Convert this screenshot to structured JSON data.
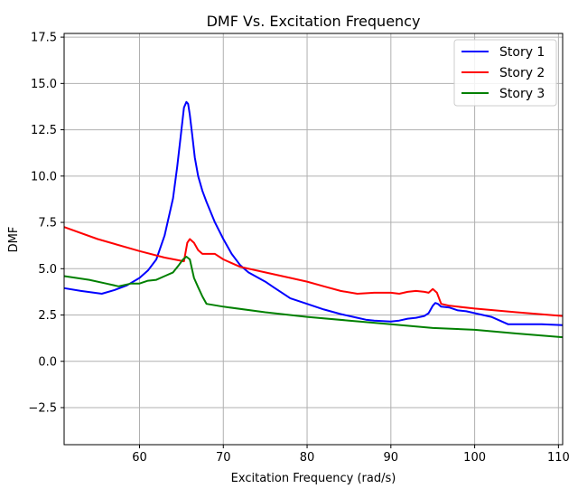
{
  "chart_data": {
    "type": "line",
    "title": "DMF Vs. Excitation Frequency",
    "xlabel": "Excitation Frequency (rad/s)",
    "ylabel": "DMF",
    "xlim": [
      51,
      110.5
    ],
    "ylim": [
      -4.5,
      17.7
    ],
    "xticks": [
      60,
      70,
      80,
      90,
      100,
      110
    ],
    "yticks": [
      -2.5,
      0.0,
      2.5,
      5.0,
      7.5,
      10.0,
      12.5,
      15.0,
      17.5
    ],
    "ytick_labels": [
      "−2.5",
      "0.0",
      "2.5",
      "5.0",
      "7.5",
      "10.0",
      "12.5",
      "15.0",
      "17.5"
    ],
    "grid": true,
    "legend_position": "top-right",
    "series": [
      {
        "name": "Story 1",
        "color": "#0000ff",
        "x": [
          51,
          53,
          55.5,
          57,
          58.5,
          60,
          61,
          62,
          63,
          64,
          64.5,
          65,
          65.3,
          65.6,
          65.8,
          66,
          66.3,
          66.6,
          67,
          67.5,
          68,
          69,
          70,
          71,
          72,
          73,
          75,
          76,
          78,
          80,
          82,
          84,
          86,
          87,
          88,
          90,
          91,
          92,
          93,
          94,
          94.5,
          95,
          95.3,
          95.6,
          96,
          97,
          98,
          99,
          100,
          102,
          104,
          106,
          108,
          110.5
        ],
        "y": [
          3.95,
          3.8,
          3.65,
          3.85,
          4.1,
          4.5,
          4.9,
          5.5,
          6.8,
          8.8,
          10.5,
          12.5,
          13.7,
          14.0,
          13.9,
          13.3,
          12.2,
          11.0,
          10.0,
          9.2,
          8.6,
          7.5,
          6.6,
          5.8,
          5.2,
          4.8,
          4.3,
          4.0,
          3.4,
          3.1,
          2.8,
          2.55,
          2.35,
          2.25,
          2.2,
          2.15,
          2.2,
          2.3,
          2.35,
          2.45,
          2.6,
          3.0,
          3.15,
          3.1,
          2.95,
          2.9,
          2.75,
          2.7,
          2.6,
          2.4,
          2.0,
          2.0,
          2.0,
          1.95
        ]
      },
      {
        "name": "Story 2",
        "color": "#ff0000",
        "x": [
          51,
          55,
          60,
          63,
          65.3,
          65.7,
          66,
          66.5,
          67,
          67.5,
          68,
          69,
          70,
          72,
          75,
          78,
          80,
          82,
          84,
          86,
          88,
          90,
          91,
          92,
          93,
          94,
          94.5,
          95,
          95.5,
          96,
          97,
          100,
          105,
          110.5
        ],
        "y": [
          7.25,
          6.6,
          5.95,
          5.6,
          5.4,
          6.4,
          6.6,
          6.4,
          6.0,
          5.8,
          5.8,
          5.8,
          5.5,
          5.1,
          4.8,
          4.5,
          4.3,
          4.05,
          3.8,
          3.65,
          3.7,
          3.7,
          3.65,
          3.75,
          3.8,
          3.75,
          3.7,
          3.9,
          3.7,
          3.1,
          3.0,
          2.85,
          2.65,
          2.45
        ]
      },
      {
        "name": "Story 3",
        "color": "#008000",
        "x": [
          51,
          54,
          56,
          57.5,
          59,
          60,
          61,
          62,
          63,
          64,
          64.7,
          65.2,
          65.6,
          66,
          66.5,
          67,
          67.5,
          68,
          70,
          75,
          80,
          85,
          90,
          95,
          100,
          105,
          110.5
        ],
        "y": [
          4.6,
          4.4,
          4.2,
          4.05,
          4.2,
          4.2,
          4.35,
          4.4,
          4.6,
          4.8,
          5.2,
          5.5,
          5.65,
          5.5,
          4.5,
          4.0,
          3.5,
          3.1,
          2.95,
          2.65,
          2.4,
          2.2,
          2.0,
          1.8,
          1.7,
          1.5,
          1.3
        ]
      }
    ]
  }
}
